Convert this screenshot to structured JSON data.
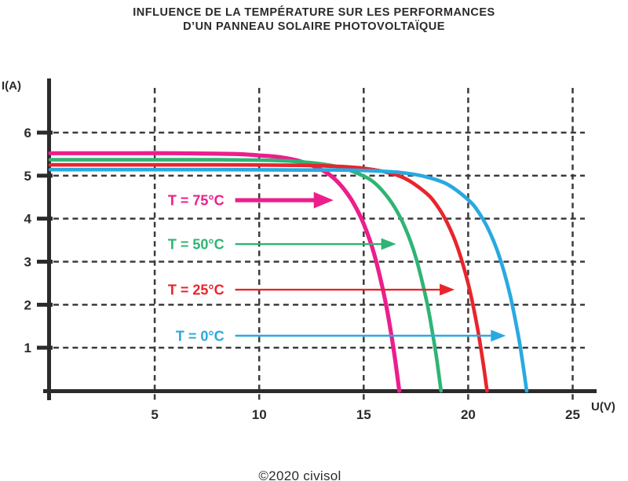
{
  "title": {
    "line1": "INFLUENCE DE LA TEMPÉRATURE SUR LES PERFORMANCES",
    "line2": "D’UN PANNEAU SOLAIRE PHOTOVOLTAÏQUE"
  },
  "footer": {
    "copyright": "©2020 civisol"
  },
  "chart_data": {
    "type": "line",
    "title": "INFLUENCE DE LA TEMPÉRATURE SUR LES PERFORMANCES D’UN PANNEAU SOLAIRE PHOTOVOLTAÏQUE",
    "xlabel": "U(V)",
    "ylabel": "I(A)",
    "xlim": [
      0,
      26
    ],
    "ylim": [
      0,
      7
    ],
    "x_ticks": [
      5,
      10,
      15,
      20,
      25
    ],
    "y_ticks": [
      1,
      2,
      3,
      4,
      5,
      6
    ],
    "grid": "dashed",
    "legend_position": "inline-arrows",
    "colors": {
      "axis": "#2D2A2B",
      "grid": "#3B3B3B",
      "text": "#2D2A2B"
    },
    "series": [
      {
        "name": "T = 75°C",
        "temperature_c": 75,
        "color": "#EC1E8C",
        "isc_a": 5.52,
        "voc_v": 16.7,
        "points": [
          [
            0,
            5.52
          ],
          [
            2,
            5.52
          ],
          [
            4,
            5.52
          ],
          [
            6,
            5.52
          ],
          [
            8,
            5.51
          ],
          [
            9,
            5.5
          ],
          [
            10,
            5.47
          ],
          [
            11,
            5.43
          ],
          [
            12,
            5.33
          ],
          [
            13,
            5.13
          ],
          [
            13.5,
            4.97
          ],
          [
            14,
            4.72
          ],
          [
            14.5,
            4.37
          ],
          [
            15,
            3.88
          ],
          [
            15.5,
            3.18
          ],
          [
            16,
            2.17
          ],
          [
            16.3,
            1.37
          ],
          [
            16.5,
            0.74
          ],
          [
            16.7,
            0
          ]
        ]
      },
      {
        "name": "T = 50°C",
        "temperature_c": 50,
        "color": "#2FB474",
        "isc_a": 5.37,
        "voc_v": 18.7,
        "points": [
          [
            0,
            5.37
          ],
          [
            4,
            5.37
          ],
          [
            8,
            5.37
          ],
          [
            10,
            5.36
          ],
          [
            11,
            5.35
          ],
          [
            12,
            5.32
          ],
          [
            13,
            5.27
          ],
          [
            14,
            5.18
          ],
          [
            15,
            4.99
          ],
          [
            15.5,
            4.84
          ],
          [
            16,
            4.59
          ],
          [
            16.5,
            4.25
          ],
          [
            17,
            3.77
          ],
          [
            17.5,
            3.09
          ],
          [
            18,
            2.11
          ],
          [
            18.3,
            1.33
          ],
          [
            18.5,
            0.72
          ],
          [
            18.7,
            0
          ]
        ]
      },
      {
        "name": "T = 25°C",
        "temperature_c": 25,
        "color": "#E8252C",
        "isc_a": 5.25,
        "voc_v": 20.9,
        "points": [
          [
            0,
            5.25
          ],
          [
            4,
            5.25
          ],
          [
            8,
            5.25
          ],
          [
            12,
            5.24
          ],
          [
            14,
            5.21
          ],
          [
            15,
            5.17
          ],
          [
            16,
            5.09
          ],
          [
            17,
            4.93
          ],
          [
            18,
            4.59
          ],
          [
            18.5,
            4.31
          ],
          [
            19,
            3.9
          ],
          [
            19.5,
            3.32
          ],
          [
            20,
            2.49
          ],
          [
            20.4,
            1.58
          ],
          [
            20.7,
            0.7
          ],
          [
            20.9,
            0
          ]
        ]
      },
      {
        "name": "T = 0°C",
        "temperature_c": 0,
        "color": "#29A9E0",
        "isc_a": 5.14,
        "voc_v": 22.8,
        "points": [
          [
            0,
            5.14
          ],
          [
            4,
            5.14
          ],
          [
            8,
            5.14
          ],
          [
            12,
            5.13
          ],
          [
            14,
            5.13
          ],
          [
            16,
            5.1
          ],
          [
            17,
            5.06
          ],
          [
            18,
            4.97
          ],
          [
            19,
            4.8
          ],
          [
            20,
            4.44
          ],
          [
            20.5,
            4.15
          ],
          [
            21,
            3.72
          ],
          [
            21.5,
            3.11
          ],
          [
            22,
            2.24
          ],
          [
            22.4,
            1.28
          ],
          [
            22.6,
            0.68
          ],
          [
            22.8,
            0
          ]
        ]
      }
    ],
    "annotations": [
      {
        "label": "T = 75°C",
        "color": "#EC1E8C",
        "arrow_i": 4.43,
        "arrow_u_from": 8.85,
        "arrow_u_to": 13.55,
        "thick": true
      },
      {
        "label": "T = 50°C",
        "color": "#2FB474",
        "arrow_i": 3.41,
        "arrow_u_from": 8.85,
        "arrow_u_to": 16.55,
        "thick": false
      },
      {
        "label": "T = 25°C",
        "color": "#E8252C",
        "arrow_i": 2.35,
        "arrow_u_from": 8.85,
        "arrow_u_to": 19.35,
        "thick": false
      },
      {
        "label": "T = 0°C",
        "color": "#29A9E0",
        "arrow_i": 1.28,
        "arrow_u_from": 8.85,
        "arrow_u_to": 21.8,
        "thick": false
      }
    ]
  }
}
